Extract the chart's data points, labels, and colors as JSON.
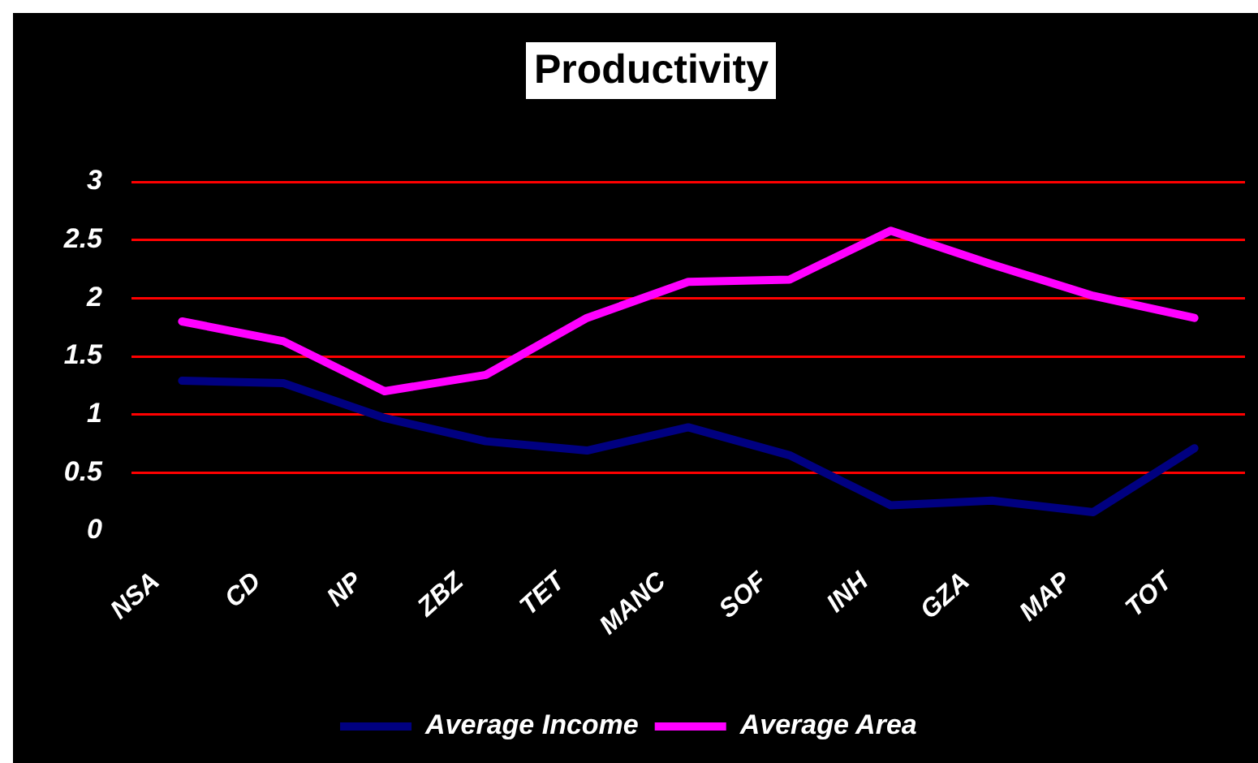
{
  "chart_data": {
    "type": "line",
    "title": "Productivity",
    "categories": [
      "NSA",
      "CD",
      "NP",
      "ZBZ",
      "TET",
      "MANC",
      "SOF",
      "INH",
      "GZA",
      "MAP",
      "TOT"
    ],
    "series": [
      {
        "name": "Average Income",
        "color": "#000080",
        "values": [
          1.29,
          1.27,
          0.97,
          0.77,
          0.69,
          0.89,
          0.65,
          0.22,
          0.26,
          0.16,
          0.71
        ]
      },
      {
        "name": "Average Area",
        "color": "#ff00ff",
        "values": [
          1.8,
          1.63,
          1.2,
          1.34,
          1.83,
          2.14,
          2.16,
          2.58,
          2.29,
          2.02,
          1.83
        ]
      }
    ],
    "ylim": [
      0,
      3
    ],
    "yticks": [
      0,
      0.5,
      1,
      1.5,
      2,
      2.5,
      3
    ],
    "grid": "y",
    "legend": "bottom",
    "marker": "none"
  }
}
